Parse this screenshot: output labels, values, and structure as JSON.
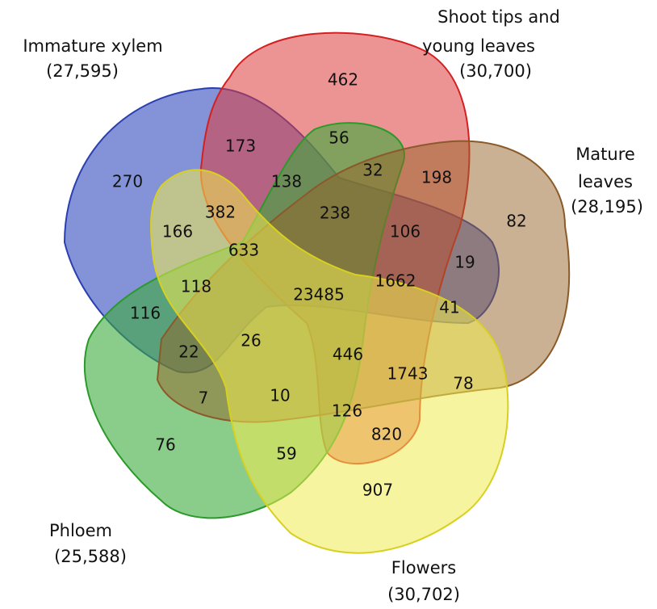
{
  "sets": [
    {
      "lines": [
        "Immature xylem"
      ],
      "count": "(27,595)"
    },
    {
      "lines": [
        "Shoot tips and",
        "young leaves"
      ],
      "count": "(30,700)"
    },
    {
      "lines": [
        "Mature",
        "leaves"
      ],
      "count": "(28,195)"
    },
    {
      "lines": [
        "Phloem"
      ],
      "count": "(25,588)"
    },
    {
      "lines": [
        "Flowers"
      ],
      "count": "(30,702)"
    }
  ],
  "regions": [
    462,
    173,
    56,
    270,
    138,
    32,
    198,
    382,
    238,
    82,
    166,
    633,
    106,
    19,
    1662,
    118,
    23485,
    116,
    41,
    26,
    22,
    446,
    1743,
    78,
    7,
    10,
    126,
    820,
    76,
    59,
    907
  ]
}
